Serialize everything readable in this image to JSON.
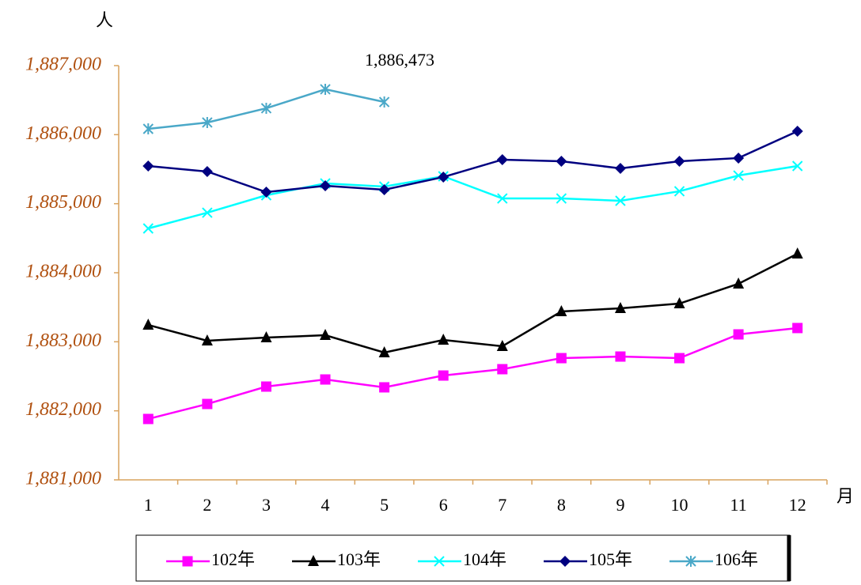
{
  "chart_data": {
    "type": "line",
    "y_unit": "人",
    "x_unit": "月",
    "annotation": "1,886,473",
    "categories": [
      "1",
      "2",
      "3",
      "4",
      "5",
      "6",
      "7",
      "8",
      "9",
      "10",
      "11",
      "12"
    ],
    "ylim": [
      1881000,
      1887000
    ],
    "yticks": [
      {
        "value": 1881000,
        "label": "1,881,000"
      },
      {
        "value": 1882000,
        "label": "1,882,000"
      },
      {
        "value": 1883000,
        "label": "1,883,000"
      },
      {
        "value": 1884000,
        "label": "1,884,000"
      },
      {
        "value": 1885000,
        "label": "1,885,000"
      },
      {
        "value": 1886000,
        "label": "1,886,000"
      },
      {
        "value": 1887000,
        "label": "1,887,000"
      }
    ],
    "grid": false,
    "series": [
      {
        "name": "102年",
        "color": "#ff00ff",
        "marker": "square",
        "values": [
          1881882,
          1882099,
          1882351,
          1882454,
          1882340,
          1882511,
          1882603,
          1882763,
          1882786,
          1882763,
          1883107,
          1883199
        ]
      },
      {
        "name": "103年",
        "color": "#000000",
        "marker": "triangle",
        "values": [
          1883244,
          1883015,
          1883061,
          1883095,
          1882844,
          1883027,
          1882935,
          1883439,
          1883485,
          1883553,
          1883840,
          1884275
        ]
      },
      {
        "name": "104年",
        "color": "#00ffff",
        "marker": "cross",
        "values": [
          1884641,
          1884870,
          1885122,
          1885294,
          1885248,
          1885397,
          1885076,
          1885076,
          1885042,
          1885180,
          1885408,
          1885546
        ]
      },
      {
        "name": "105年",
        "color": "#000080",
        "marker": "diamond",
        "values": [
          1885546,
          1885466,
          1885168,
          1885260,
          1885202,
          1885386,
          1885638,
          1885615,
          1885512,
          1885615,
          1885661,
          1886050
        ]
      },
      {
        "name": "106年",
        "color": "#4aa8c8",
        "marker": "star",
        "values": [
          1886084,
          1886176,
          1886382,
          1886657,
          1886473,
          null,
          null,
          null,
          null,
          null,
          null,
          null
        ]
      }
    ]
  }
}
